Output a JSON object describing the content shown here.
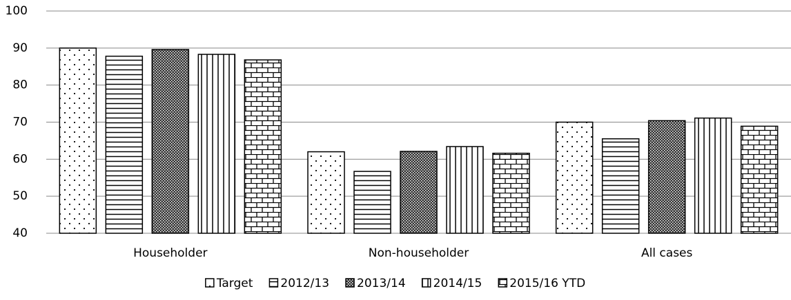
{
  "chart_data": {
    "type": "bar",
    "categories": [
      "Householder",
      "Non-householder",
      "All cases"
    ],
    "series": [
      {
        "name": "Target",
        "color": "#000000",
        "values": [
          90,
          62,
          70
        ]
      },
      {
        "name": "2012/13",
        "color": "#000000",
        "values": [
          87.8,
          56.7,
          65.5
        ]
      },
      {
        "name": "2013/14",
        "color": "#000000",
        "values": [
          89.6,
          62.1,
          70.4
        ]
      },
      {
        "name": "2014/15",
        "color": "#000000",
        "values": [
          88.3,
          63.4,
          71.1
        ]
      },
      {
        "name": "2015/16 YTD",
        "color": "#000000",
        "values": [
          86.8,
          61.6,
          68.9
        ]
      }
    ],
    "ylim": [
      40,
      100
    ],
    "yticks": [
      40,
      50,
      60,
      70,
      80,
      90,
      100
    ],
    "grid": true,
    "legend": "bottom"
  }
}
